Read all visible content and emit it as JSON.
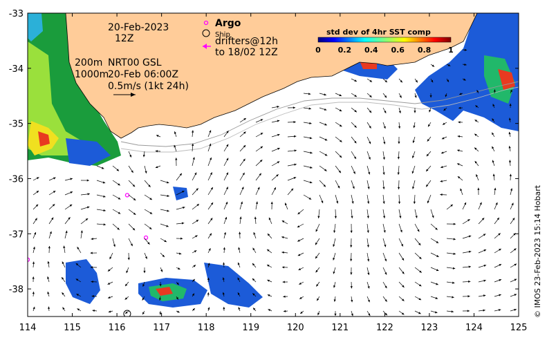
{
  "map": {
    "date_line": "20-Feb-2023",
    "time_line": "12Z",
    "depth_200": "200m",
    "depth_1000": "1000m",
    "product_line": "NRT00 GSL",
    "product_time": "20-Feb 06:00Z",
    "scale_label": "0.5m/s (1kt 24h)"
  },
  "legend": {
    "argo_label": "Argo",
    "ship_label": "Ship",
    "drifters_line1": "drifters@12h",
    "drifters_line2": "to 18/02 12Z",
    "argo_color": "#ff00ff",
    "drifter_color": "#ff00ff"
  },
  "colorbar": {
    "title": "std dev of 4hr SST comp",
    "ticks": [
      "0",
      "0.2",
      "0.4",
      "0.6",
      "0.8",
      "1"
    ]
  },
  "axes": {
    "x_ticks": [
      "114",
      "115",
      "116",
      "117",
      "118",
      "119",
      "120",
      "121",
      "122",
      "123",
      "124",
      "125"
    ],
    "y_ticks": [
      "-33",
      "-34",
      "-35",
      "-36",
      "-37",
      "-38"
    ],
    "lon_range": [
      114,
      125
    ],
    "lat_range": [
      -38.5,
      -33
    ]
  },
  "credit": "© IMOS 23-Feb-2023 15:14 Hobart",
  "argo_floats": [
    {
      "lon": 116.23,
      "lat": -36.3
    },
    {
      "lon": 116.65,
      "lat": -37.07
    },
    {
      "lon": 114.0,
      "lat": -37.47
    }
  ],
  "ship": {
    "lon": 116.23,
    "lat": -38.45
  },
  "colors": {
    "land": "#ffcc99",
    "ocean": "#ffffff",
    "coast": "#000000"
  }
}
